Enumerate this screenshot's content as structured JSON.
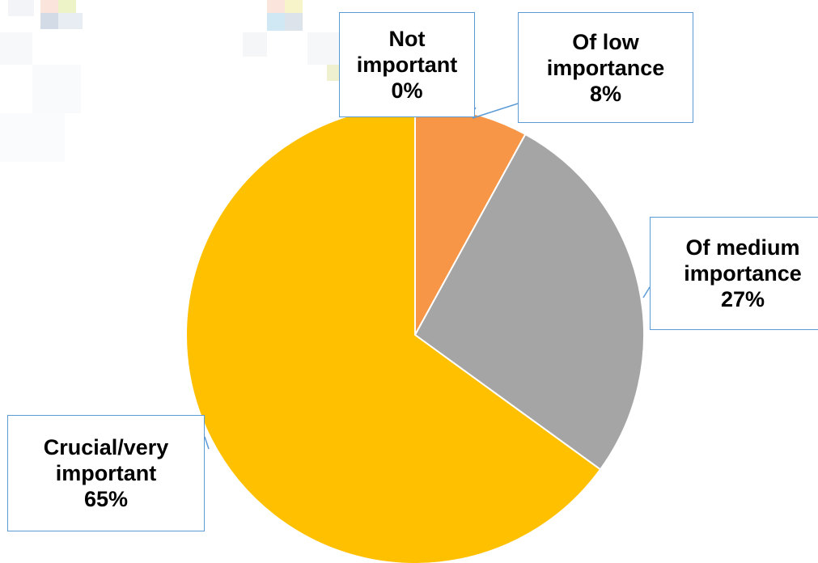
{
  "chart_data": {
    "type": "pie",
    "title": "",
    "slices": [
      {
        "label_lines": [
          "Not",
          "important"
        ],
        "value": 0,
        "percent_label": "0%",
        "color": "#ed7d31"
      },
      {
        "label_lines": [
          "Of low",
          "importance"
        ],
        "value": 8,
        "percent_label": "8%",
        "color": "#f79646"
      },
      {
        "label_lines": [
          "Of medium",
          "importance"
        ],
        "value": 27,
        "percent_label": "27%",
        "color": "#a5a5a5"
      },
      {
        "label_lines": [
          "Crucial/very",
          "important"
        ],
        "value": 65,
        "percent_label": "65%",
        "color": "#ffc000"
      }
    ],
    "legend": "none",
    "callout_border_color": "#5b9bd5"
  }
}
